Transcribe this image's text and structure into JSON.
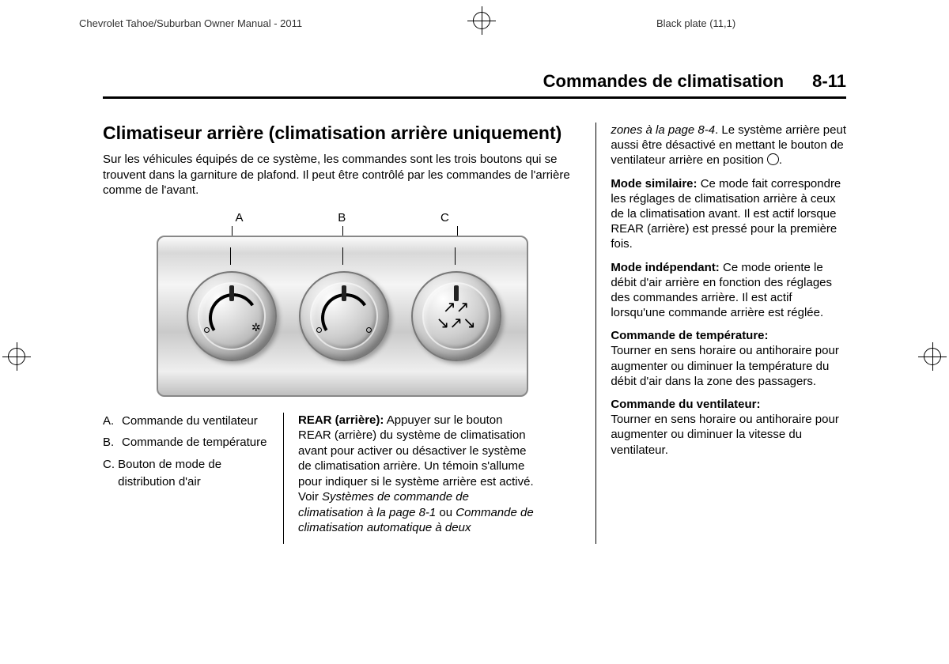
{
  "crop": {
    "left_header": "Chevrolet Tahoe/Suburban Owner Manual - 2011",
    "right_header": "Black plate (11,1)"
  },
  "header": {
    "section_title": "Commandes de climatisation",
    "page_num": "8-11"
  },
  "main": {
    "heading": "Climatiseur arrière (climatisation arrière uniquement)",
    "intro": "Sur les véhicules équipés de ce système, les commandes sont les trois boutons qui se trouvent dans la garniture de plafond. Il peut être contrôlé par les commandes de l'arrière comme de l'avant."
  },
  "figure": {
    "labels": {
      "a": "A",
      "b": "B",
      "c": "C"
    }
  },
  "legend": {
    "a": {
      "lbl": "A.",
      "txt": "Commande du ventilateur"
    },
    "b": {
      "lbl": "B.",
      "txt": "Commande de température"
    },
    "c": {
      "lbl": "C.",
      "txt": "Bouton de mode de distribution d'air"
    }
  },
  "mid": {
    "rear_label": "REAR (arrière):",
    "rear_text": "Appuyer sur le bouton REAR (arrière) du système de climatisation avant pour activer ou désactiver le système de climatisation arrière. Un témoin s'allume pour indiquer si le système arrière est activé. Voir ",
    "ref1": "Systèmes de commande de climatisation à la page 8‑1",
    "or": " ou ",
    "ref2": "Commande de climatisation automatique à deux"
  },
  "right": {
    "cont_ref": "zones à la page 8‑4",
    "cont_text": ". Le système arrière peut aussi être désactivé en mettant le bouton de ventilateur arrière en position ",
    "cont_text2": ".",
    "similar_label": "Mode similaire:",
    "similar_text": "Ce mode fait correspondre les réglages de climatisation arrière à ceux de la climatisation avant. Il est actif lorsque REAR (arrière) est pressé pour la première fois.",
    "indep_label": "Mode indépendant:",
    "indep_text": "Ce mode oriente le débit d'air arrière en fonction des réglages des commandes arrière. Il est actif lorsqu'une commande arrière est réglée.",
    "temp_label": "Commande de température:",
    "temp_text": "Tourner en sens horaire ou antihoraire pour augmenter ou diminuer la température du débit d'air dans la zone des passagers.",
    "fan_label": "Commande du ventilateur:",
    "fan_text": "Tourner en sens horaire ou antihoraire pour augmenter ou diminuer la vitesse du ventilateur."
  }
}
